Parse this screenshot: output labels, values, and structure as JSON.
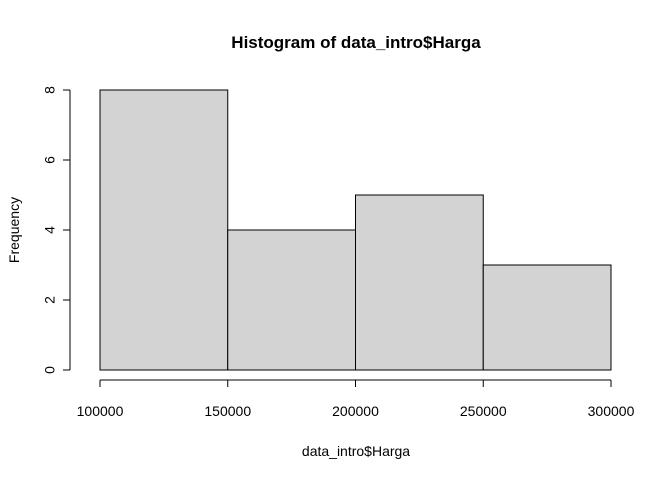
{
  "chart_data": {
    "type": "bar",
    "title": "Histogram of data_intro$Harga",
    "xlabel": "data_intro$Harga",
    "ylabel": "Frequency",
    "bins": [
      {
        "start": 100000,
        "end": 150000,
        "count": 8
      },
      {
        "start": 150000,
        "end": 200000,
        "count": 4
      },
      {
        "start": 200000,
        "end": 250000,
        "count": 5
      },
      {
        "start": 250000,
        "end": 300000,
        "count": 3
      }
    ],
    "xlim": [
      100000,
      300000
    ],
    "ylim": [
      0,
      8
    ],
    "x_ticks": [
      100000,
      150000,
      200000,
      250000,
      300000
    ],
    "x_tick_labels": [
      "100000",
      "150000",
      "200000",
      "250000",
      "300000"
    ],
    "y_ticks": [
      0,
      2,
      4,
      6,
      8
    ],
    "y_tick_labels": [
      "0",
      "2",
      "4",
      "6",
      "8"
    ],
    "bar_fill": "#d3d3d3",
    "bar_stroke": "#000000",
    "grid": false,
    "legend": "none"
  }
}
